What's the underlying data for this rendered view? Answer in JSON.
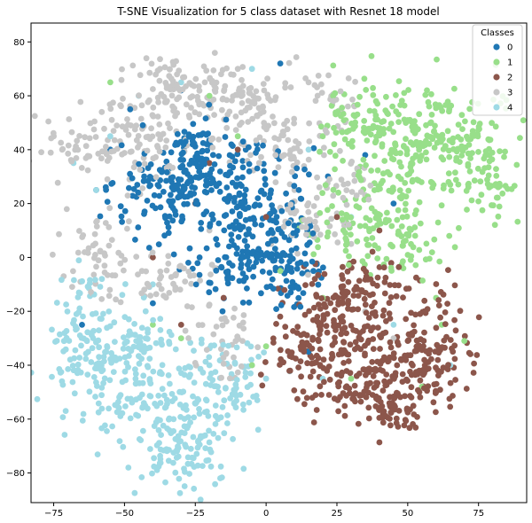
{
  "chart_data": {
    "type": "scatter",
    "title": "T-SNE Visualization for 5 class dataset with Resnet 18 model",
    "xlabel": "",
    "ylabel": "",
    "xlim": [
      -83,
      92
    ],
    "ylim": [
      -91,
      87
    ],
    "x_ticks": [
      -75,
      -50,
      -25,
      0,
      25,
      50,
      75
    ],
    "y_ticks": [
      -80,
      -60,
      -40,
      -20,
      0,
      20,
      40,
      60,
      80
    ],
    "grid": false,
    "legend": {
      "title": "Classes",
      "position": "top-right"
    },
    "series": [
      {
        "name": "0",
        "color": "#1f77b4",
        "clusters": [
          {
            "x": -35,
            "y": 22,
            "sx": 10,
            "sy": 10,
            "n": 120
          },
          {
            "x": -20,
            "y": 30,
            "sx": 8,
            "sy": 10,
            "n": 80
          },
          {
            "x": -5,
            "y": 20,
            "sx": 10,
            "sy": 10,
            "n": 110
          },
          {
            "x": 2,
            "y": 5,
            "sx": 8,
            "sy": 9,
            "n": 90
          },
          {
            "x": -10,
            "y": -5,
            "sx": 8,
            "sy": 6,
            "n": 60
          },
          {
            "x": 10,
            "y": -8,
            "sx": 5,
            "sy": 6,
            "n": 30
          },
          {
            "x": -25,
            "y": 40,
            "sx": 4,
            "sy": 5,
            "n": 30
          }
        ],
        "points": [
          [
            -55,
            40
          ],
          [
            -48,
            55
          ],
          [
            -60,
            25
          ],
          [
            45,
            20
          ],
          [
            35,
            38
          ],
          [
            -65,
            -25
          ],
          [
            -40,
            -17
          ],
          [
            15,
            -35
          ],
          [
            5,
            72
          ],
          [
            -30,
            62
          ]
        ]
      },
      {
        "name": "1",
        "color": "#98df8a",
        "clusters": [
          {
            "x": 50,
            "y": 45,
            "sx": 14,
            "sy": 9,
            "n": 160
          },
          {
            "x": 70,
            "y": 40,
            "sx": 9,
            "sy": 10,
            "n": 90
          },
          {
            "x": 40,
            "y": 20,
            "sx": 11,
            "sy": 10,
            "n": 110
          },
          {
            "x": 45,
            "y": 5,
            "sx": 10,
            "sy": 6,
            "n": 60
          },
          {
            "x": 35,
            "y": 55,
            "sx": 8,
            "sy": 7,
            "n": 50
          },
          {
            "x": 80,
            "y": 25,
            "sx": 5,
            "sy": 6,
            "n": 30
          }
        ],
        "points": [
          [
            -20,
            60
          ],
          [
            -10,
            45
          ],
          [
            5,
            -5
          ],
          [
            20,
            -15
          ],
          [
            30,
            -45
          ],
          [
            -30,
            -30
          ],
          [
            -40,
            -25
          ],
          [
            -5,
            -40
          ],
          [
            0,
            -33
          ],
          [
            60,
            -15
          ],
          [
            62,
            -25
          ],
          [
            70,
            -31
          ],
          [
            55,
            -48
          ],
          [
            20,
            45
          ],
          [
            -55,
            65
          ]
        ]
      },
      {
        "name": "2",
        "color": "#8c564b",
        "clusters": [
          {
            "x": 25,
            "y": -25,
            "sx": 10,
            "sy": 10,
            "n": 130
          },
          {
            "x": 45,
            "y": -40,
            "sx": 10,
            "sy": 9,
            "n": 110
          },
          {
            "x": 60,
            "y": -30,
            "sx": 7,
            "sy": 12,
            "n": 80
          },
          {
            "x": 35,
            "y": -50,
            "sx": 9,
            "sy": 6,
            "n": 70
          },
          {
            "x": 15,
            "y": -40,
            "sx": 8,
            "sy": 8,
            "n": 60
          },
          {
            "x": 35,
            "y": -10,
            "sx": 10,
            "sy": 6,
            "n": 60
          },
          {
            "x": 45,
            "y": -58,
            "sx": 5,
            "sy": 4,
            "n": 30
          }
        ],
        "points": [
          [
            -20,
            35
          ],
          [
            -15,
            -15
          ],
          [
            -25,
            20
          ],
          [
            40,
            10
          ],
          [
            25,
            15
          ],
          [
            -40,
            0
          ],
          [
            -10,
            40
          ],
          [
            -30,
            -25
          ],
          [
            0,
            15
          ]
        ]
      },
      {
        "name": "3",
        "color": "#c7c7c7",
        "clusters": [
          {
            "x": -30,
            "y": 62,
            "sx": 11,
            "sy": 7,
            "n": 110
          },
          {
            "x": -5,
            "y": 58,
            "sx": 10,
            "sy": 8,
            "n": 90
          },
          {
            "x": -60,
            "y": 40,
            "sx": 8,
            "sy": 7,
            "n": 60
          },
          {
            "x": -45,
            "y": 45,
            "sx": 8,
            "sy": 6,
            "n": 60
          },
          {
            "x": 10,
            "y": 40,
            "sx": 8,
            "sy": 6,
            "n": 50
          },
          {
            "x": 15,
            "y": 15,
            "sx": 6,
            "sy": 8,
            "n": 50
          },
          {
            "x": -60,
            "y": 0,
            "sx": 6,
            "sy": 8,
            "n": 50
          },
          {
            "x": -35,
            "y": -8,
            "sx": 9,
            "sy": 5,
            "n": 50
          },
          {
            "x": -15,
            "y": -30,
            "sx": 6,
            "sy": 8,
            "n": 40
          },
          {
            "x": 25,
            "y": 60,
            "sx": 5,
            "sy": 5,
            "n": 25
          },
          {
            "x": 30,
            "y": 25,
            "sx": 5,
            "sy": 5,
            "n": 20
          }
        ],
        "points": [
          [
            -72,
            40
          ],
          [
            -75,
            45
          ],
          [
            10,
            25
          ],
          [
            -10,
            70
          ],
          [
            15,
            65
          ],
          [
            35,
            -20
          ],
          [
            45,
            -30
          ],
          [
            -5,
            -40
          ],
          [
            30,
            5
          ],
          [
            -20,
            10
          ]
        ]
      },
      {
        "name": "4",
        "color": "#9edae5",
        "clusters": [
          {
            "x": -50,
            "y": -45,
            "sx": 13,
            "sy": 12,
            "n": 140
          },
          {
            "x": -25,
            "y": -60,
            "sx": 11,
            "sy": 12,
            "n": 130
          },
          {
            "x": -65,
            "y": -35,
            "sx": 6,
            "sy": 8,
            "n": 50
          },
          {
            "x": -15,
            "y": -45,
            "sx": 8,
            "sy": 8,
            "n": 60
          },
          {
            "x": -35,
            "y": -75,
            "sx": 7,
            "sy": 5,
            "n": 40
          },
          {
            "x": -65,
            "y": -20,
            "sx": 6,
            "sy": 7,
            "n": 30
          },
          {
            "x": -45,
            "y": -30,
            "sx": 6,
            "sy": 4,
            "n": 30
          }
        ],
        "points": [
          [
            -55,
            45
          ],
          [
            -45,
            60
          ],
          [
            -68,
            35
          ],
          [
            -60,
            25
          ],
          [
            -30,
            65
          ],
          [
            -5,
            70
          ],
          [
            15,
            40
          ],
          [
            30,
            15
          ],
          [
            45,
            -25
          ],
          [
            20,
            -45
          ],
          [
            65,
            -40
          ],
          [
            -40,
            -10
          ],
          [
            -58,
            -8
          ],
          [
            0,
            -45
          ],
          [
            -20,
            -40
          ]
        ]
      }
    ]
  }
}
